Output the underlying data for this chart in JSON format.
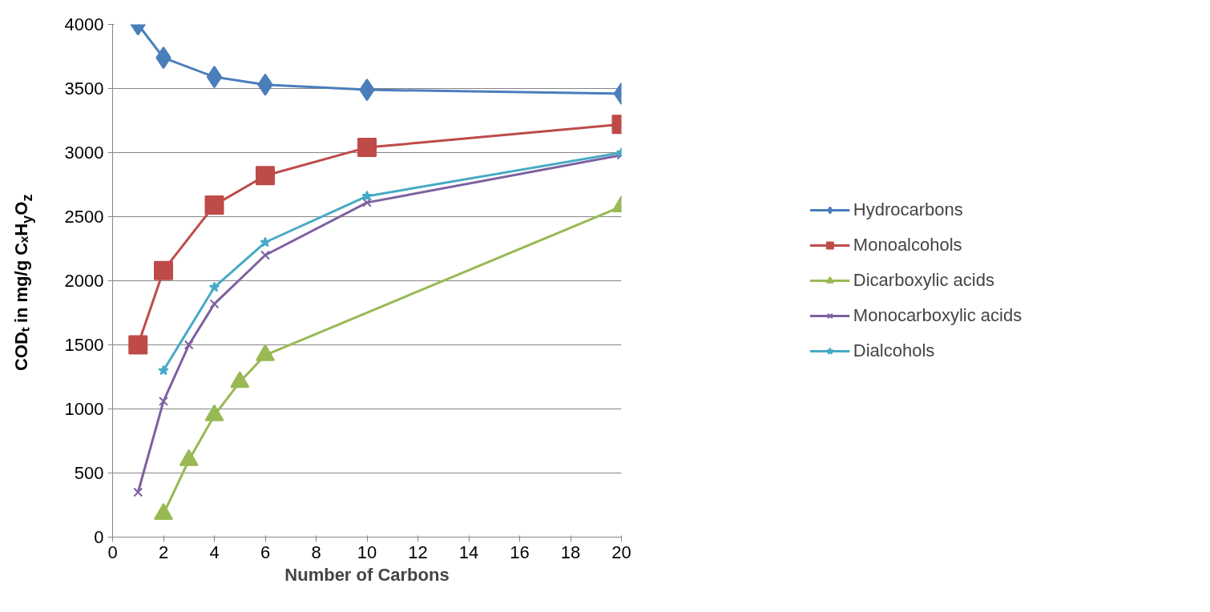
{
  "chart_data": {
    "type": "line",
    "xlabel": "Number of Carbons",
    "ylabel": "CODₜ in mg/g CₓH$_{y}$O$_{z}$",
    "xlim": [
      0,
      20
    ],
    "xticks": [
      0,
      2,
      4,
      6,
      8,
      10,
      12,
      14,
      16,
      18,
      20
    ],
    "ylim": [
      0,
      4000
    ],
    "yticks": [
      0,
      500,
      1000,
      1500,
      2000,
      2500,
      3000,
      3500,
      4000
    ],
    "grid": "y",
    "legend": "right",
    "series": [
      {
        "name": "Hydrocarbons",
        "color": "#4a7ebb",
        "marker": "diamond",
        "x": [
          1,
          2,
          4,
          6,
          10,
          20
        ],
        "values": [
          4000,
          3740,
          3590,
          3530,
          3490,
          3460
        ]
      },
      {
        "name": "Monoalcohols",
        "color": "#be4b48",
        "marker": "square",
        "x": [
          1,
          2,
          4,
          6,
          10,
          20
        ],
        "values": [
          1500,
          2080,
          2590,
          2820,
          3040,
          3220
        ]
      },
      {
        "name": "Dicarboxylic acids",
        "color": "#98b954",
        "marker": "triangle",
        "x": [
          2,
          3,
          4,
          5,
          6,
          20
        ],
        "values": [
          180,
          600,
          950,
          1210,
          1420,
          2580
        ]
      },
      {
        "name": "Monocarboxylic acids",
        "color": "#7d60a0",
        "marker": "cross",
        "x": [
          1,
          2,
          3,
          4,
          6,
          10,
          20
        ],
        "values": [
          350,
          1060,
          1500,
          1820,
          2200,
          2610,
          2980
        ]
      },
      {
        "name": "Dialcohols",
        "color": "#46aac5",
        "marker": "star",
        "x": [
          2,
          4,
          6,
          10,
          20
        ],
        "values": [
          1300,
          1950,
          2300,
          2660,
          3000
        ]
      }
    ]
  }
}
